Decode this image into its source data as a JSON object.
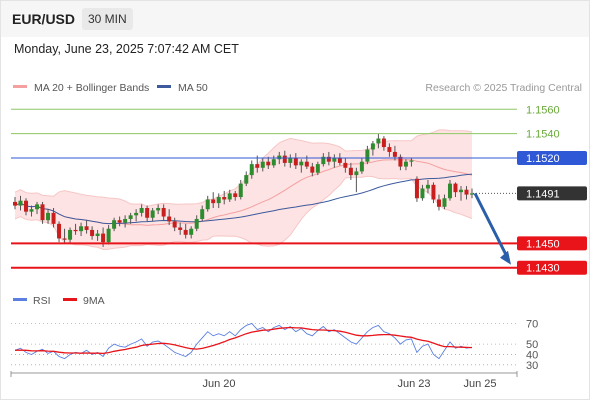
{
  "header": {
    "pair": "EUR/USD",
    "timeframe": "30 MIN"
  },
  "timestamp": "Monday, June 23, 2025 7:07:42 AM CET",
  "colors": {
    "bollinger": "#f4a0a0",
    "band_fill": "#fde3e3",
    "ma50": "#3c5a9c",
    "up": "#2e8b2e",
    "down": "#c81e1e",
    "green_level": "#8dc862",
    "blue_level": "#2e58d6",
    "red_level": "#e8141a",
    "current": "#333333",
    "rsi": "#5a7fe0",
    "rsi_ma": "#e8141a"
  },
  "chart_data": [
    {
      "type": "candlestick",
      "legend": [
        {
          "label": "MA 20 + Bollinger Bands",
          "color": "#f4a0a0"
        },
        {
          "label": "MA 50",
          "color": "#3c5a9c"
        }
      ],
      "credit": "Research © 2025 Trading Central",
      "x_ticks": [
        "Jun 20",
        "Jun 23",
        "Jun 25"
      ],
      "ylim": [
        1.1415,
        1.1575
      ],
      "levels": [
        {
          "label": "1.1560",
          "value": 1.156,
          "kind": "resistance"
        },
        {
          "label": "1.1540",
          "value": 1.154,
          "kind": "resistance"
        },
        {
          "label": "1.1520",
          "value": 1.152,
          "kind": "pivot"
        },
        {
          "label": "1.1491",
          "value": 1.1491,
          "kind": "current"
        },
        {
          "label": "1.1450",
          "value": 1.145,
          "kind": "support"
        },
        {
          "label": "1.1430",
          "value": 1.143,
          "kind": "support"
        }
      ],
      "forecast_arrow": {
        "from": 1.1491,
        "to": 1.143
      },
      "ohlc": [
        [
          1.1484,
          1.1488,
          1.1478,
          1.1481
        ],
        [
          1.1481,
          1.1489,
          1.1477,
          1.1485
        ],
        [
          1.1485,
          1.1487,
          1.1473,
          1.1476
        ],
        [
          1.1476,
          1.1481,
          1.1472,
          1.1478
        ],
        [
          1.1478,
          1.1484,
          1.1474,
          1.1482
        ],
        [
          1.1482,
          1.1484,
          1.1466,
          1.1469
        ],
        [
          1.1469,
          1.1478,
          1.1466,
          1.1475
        ],
        [
          1.1475,
          1.1479,
          1.1463,
          1.1466
        ],
        [
          1.1466,
          1.1468,
          1.1451,
          1.1454
        ],
        [
          1.1454,
          1.1462,
          1.145,
          1.1453
        ],
        [
          1.1453,
          1.1463,
          1.145,
          1.1461
        ],
        [
          1.1461,
          1.1466,
          1.1457,
          1.146
        ],
        [
          1.146,
          1.1467,
          1.1456,
          1.1464
        ],
        [
          1.1464,
          1.1469,
          1.1458,
          1.1461
        ],
        [
          1.1461,
          1.1464,
          1.1453,
          1.1456
        ],
        [
          1.1456,
          1.1461,
          1.1452,
          1.1458
        ],
        [
          1.1458,
          1.1463,
          1.1447,
          1.1451
        ],
        [
          1.1451,
          1.1465,
          1.1449,
          1.1462
        ],
        [
          1.1462,
          1.1471,
          1.146,
          1.1469
        ],
        [
          1.1469,
          1.1472,
          1.1464,
          1.1467
        ],
        [
          1.1467,
          1.1473,
          1.1463,
          1.147
        ],
        [
          1.147,
          1.1475,
          1.1466,
          1.1473
        ],
        [
          1.1473,
          1.1478,
          1.1468,
          1.1475
        ],
        [
          1.1475,
          1.1482,
          1.1472,
          1.1479
        ],
        [
          1.1479,
          1.1481,
          1.1468,
          1.1471
        ],
        [
          1.1471,
          1.1479,
          1.1468,
          1.1477
        ],
        [
          1.1477,
          1.1482,
          1.1474,
          1.1479
        ],
        [
          1.1479,
          1.1482,
          1.1469,
          1.1472
        ],
        [
          1.1472,
          1.1478,
          1.1465,
          1.1468
        ],
        [
          1.1468,
          1.1471,
          1.146,
          1.1463
        ],
        [
          1.1463,
          1.1467,
          1.1457,
          1.1461
        ],
        [
          1.1461,
          1.1466,
          1.1454,
          1.1457
        ],
        [
          1.1457,
          1.1464,
          1.1454,
          1.1462
        ],
        [
          1.1462,
          1.1473,
          1.146,
          1.147
        ],
        [
          1.147,
          1.1481,
          1.1468,
          1.1478
        ],
        [
          1.1478,
          1.1489,
          1.1476,
          1.1486
        ],
        [
          1.1486,
          1.1492,
          1.1479,
          1.1483
        ],
        [
          1.1483,
          1.1491,
          1.1479,
          1.1488
        ],
        [
          1.1488,
          1.1493,
          1.1482,
          1.1486
        ],
        [
          1.1486,
          1.1494,
          1.1484,
          1.1491
        ],
        [
          1.1491,
          1.1493,
          1.1485,
          1.1488
        ],
        [
          1.1488,
          1.1502,
          1.1486,
          1.1499
        ],
        [
          1.1499,
          1.1509,
          1.1497,
          1.1506
        ],
        [
          1.1506,
          1.1518,
          1.1503,
          1.1515
        ],
        [
          1.1515,
          1.1522,
          1.1508,
          1.1512
        ],
        [
          1.1512,
          1.152,
          1.1509,
          1.1517
        ],
        [
          1.1517,
          1.1521,
          1.1511,
          1.1514
        ],
        [
          1.1514,
          1.1522,
          1.1512,
          1.1519
        ],
        [
          1.1519,
          1.1525,
          1.1515,
          1.1522
        ],
        [
          1.1522,
          1.1526,
          1.1513,
          1.1516
        ],
        [
          1.1516,
          1.1523,
          1.1512,
          1.152
        ],
        [
          1.152,
          1.1524,
          1.1511,
          1.1514
        ],
        [
          1.1514,
          1.1519,
          1.1508,
          1.1517
        ],
        [
          1.1517,
          1.1522,
          1.1511,
          1.1513
        ],
        [
          1.1513,
          1.1516,
          1.1505,
          1.1508
        ],
        [
          1.1508,
          1.1517,
          1.1506,
          1.1515
        ],
        [
          1.1515,
          1.1524,
          1.1513,
          1.1521
        ],
        [
          1.1521,
          1.1525,
          1.1514,
          1.1517
        ],
        [
          1.1517,
          1.1523,
          1.1512,
          1.152
        ],
        [
          1.152,
          1.1524,
          1.1514,
          1.1516
        ],
        [
          1.1516,
          1.152,
          1.1508,
          1.1512
        ],
        [
          1.1512,
          1.1516,
          1.1502,
          1.1506
        ],
        [
          1.1506,
          1.1512,
          1.1492,
          1.1509
        ],
        [
          1.1509,
          1.152,
          1.1507,
          1.1517
        ],
        [
          1.1517,
          1.153,
          1.1515,
          1.1527
        ],
        [
          1.1527,
          1.1534,
          1.1522,
          1.1532
        ],
        [
          1.1532,
          1.154,
          1.1528,
          1.1536
        ],
        [
          1.1536,
          1.1538,
          1.1526,
          1.1529
        ],
        [
          1.1529,
          1.1532,
          1.1521,
          1.1525
        ],
        [
          1.1525,
          1.153,
          1.1518,
          1.1521
        ],
        [
          1.1521,
          1.1523,
          1.151,
          1.1513
        ],
        [
          1.1513,
          1.1519,
          1.151,
          1.1517
        ],
        [
          1.1517,
          1.152,
          1.1513,
          1.1518
        ],
        [
          1.1503,
          1.1505,
          1.1484,
          1.1487
        ],
        [
          1.1487,
          1.1498,
          1.1485,
          1.1495
        ],
        [
          1.1495,
          1.1502,
          1.1491,
          1.1498
        ],
        [
          1.1498,
          1.15,
          1.1483,
          1.1486
        ],
        [
          1.1486,
          1.149,
          1.1477,
          1.148
        ],
        [
          1.148,
          1.149,
          1.1478,
          1.1487
        ],
        [
          1.1487,
          1.1502,
          1.1485,
          1.1499
        ],
        [
          1.1499,
          1.15,
          1.1488,
          1.1492
        ],
        [
          1.1492,
          1.1497,
          1.1485,
          1.1494
        ],
        [
          1.1494,
          1.1497,
          1.1486,
          1.149
        ],
        [
          1.149,
          1.1495,
          1.1487,
          1.1491
        ]
      ]
    },
    {
      "type": "line",
      "legend": [
        {
          "label": "RSI",
          "color": "#5a7fe0"
        },
        {
          "label": "9MA",
          "color": "#e8141a"
        }
      ],
      "y_ticks": [
        "70",
        "50",
        "40",
        "30"
      ],
      "ylim": [
        25,
        80
      ],
      "gridlines": [
        70,
        50,
        40,
        30
      ],
      "series": [
        {
          "name": "RSI",
          "values": [
            44,
            46,
            42,
            40,
            43,
            45,
            41,
            43,
            38,
            36,
            40,
            42,
            41,
            44,
            40,
            42,
            38,
            46,
            50,
            48,
            47,
            50,
            52,
            55,
            48,
            52,
            53,
            50,
            46,
            42,
            40,
            38,
            42,
            50,
            56,
            62,
            58,
            60,
            58,
            62,
            58,
            64,
            68,
            70,
            64,
            66,
            62,
            66,
            68,
            64,
            67,
            62,
            65,
            60,
            58,
            63,
            67,
            62,
            64,
            60,
            56,
            52,
            50,
            56,
            62,
            66,
            68,
            62,
            60,
            56,
            50,
            54,
            55,
            42,
            48,
            50,
            40,
            36,
            44,
            52,
            46,
            48,
            46,
            47
          ]
        },
        {
          "name": "9MA",
          "values": [
            44,
            44.2,
            44,
            43.5,
            43.4,
            43.6,
            43.2,
            43,
            42.2,
            41.6,
            41.4,
            41.4,
            41.2,
            41.4,
            41.2,
            41.2,
            41,
            41.8,
            43,
            44,
            44.8,
            46,
            47,
            48.6,
            49.4,
            50,
            50.6,
            50.8,
            50.2,
            49.2,
            48,
            46.6,
            45.6,
            45.2,
            45.8,
            47.2,
            48.6,
            50.4,
            52.2,
            54.4,
            56,
            58,
            60,
            61.6,
            62.4,
            63.4,
            63.6,
            64.4,
            65.2,
            65.6,
            66,
            65.6,
            65.6,
            64.8,
            64,
            63.6,
            63.6,
            63.2,
            63,
            62.4,
            61.4,
            60,
            58.6,
            58,
            58,
            58.4,
            59,
            59.2,
            59.2,
            58.6,
            57.8,
            57,
            56.6,
            54.8,
            53.6,
            52.8,
            51,
            49,
            47.6,
            47.6,
            47.2,
            47,
            46.8,
            46.6
          ]
        }
      ]
    }
  ]
}
